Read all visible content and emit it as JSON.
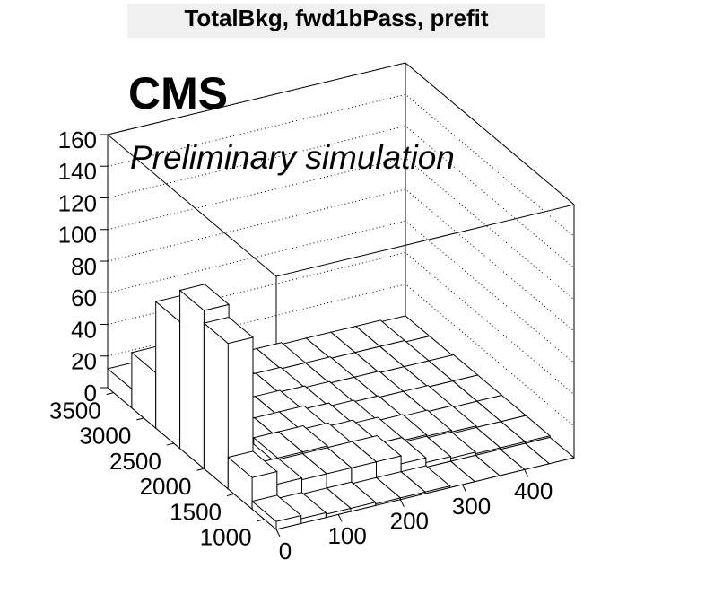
{
  "chart_data": {
    "type": "lego",
    "title": "TotalBkg, fwd1bPass, prefit",
    "experiment_label": "CMS",
    "status_label": "Preliminary simulation",
    "xbins": [
      0,
      40,
      80,
      120,
      160,
      200,
      240,
      280,
      320,
      360,
      400,
      440,
      480
    ],
    "ybins": [
      800,
      1200,
      1600,
      2000,
      2400,
      2800,
      3200,
      3600
    ],
    "values": [
      [
        5,
        3,
        2,
        2,
        1,
        1,
        1,
        0,
        0,
        0,
        0,
        0
      ],
      [
        20,
        12,
        11,
        11,
        11,
        11,
        6,
        3,
        2,
        1,
        1,
        1
      ],
      [
        92,
        8,
        12,
        12,
        10,
        8,
        6,
        4,
        3,
        2,
        1,
        1
      ],
      [
        100,
        6,
        8,
        8,
        8,
        6,
        4,
        3,
        2,
        2,
        1,
        1
      ],
      [
        80,
        5,
        5,
        5,
        5,
        4,
        3,
        2,
        2,
        1,
        1,
        1
      ],
      [
        35,
        4,
        4,
        4,
        3,
        3,
        2,
        2,
        1,
        1,
        1,
        0
      ],
      [
        12,
        3,
        3,
        3,
        2,
        2,
        2,
        1,
        1,
        1,
        1,
        0
      ]
    ],
    "color": "#ffffff",
    "xlim": [
      0,
      480
    ],
    "ylim": [
      800,
      3600
    ],
    "zlim": [
      0,
      160
    ],
    "xticks": [
      0,
      100,
      200,
      300,
      400
    ],
    "yticks": [
      1000,
      1500,
      2000,
      2500,
      3000,
      3500
    ],
    "zticks": [
      0,
      20,
      40,
      60,
      80,
      100,
      120,
      140,
      160
    ],
    "grid": true
  }
}
